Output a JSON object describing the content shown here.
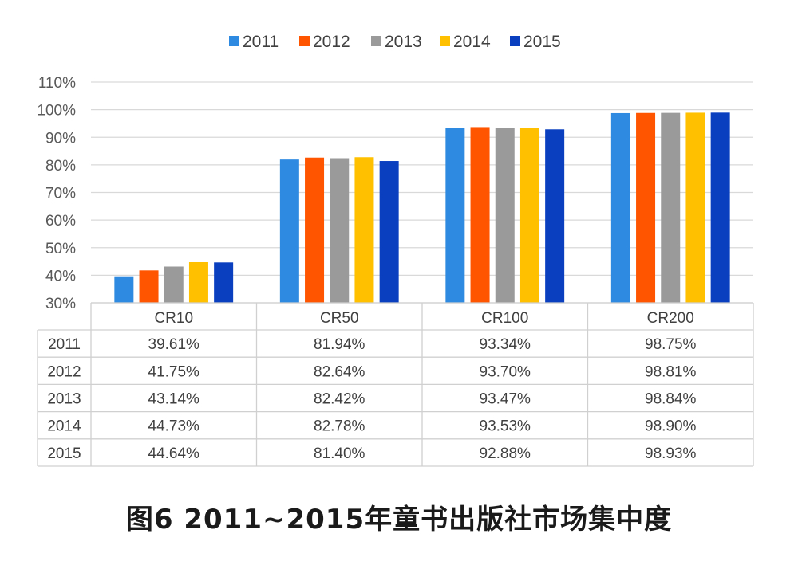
{
  "chart_data": {
    "type": "bar",
    "categories": [
      "CR10",
      "CR50",
      "CR100",
      "CR200"
    ],
    "series": [
      {
        "name": "2011",
        "color": "#2e8ae0",
        "values": [
          39.61,
          81.94,
          93.34,
          98.75
        ],
        "labels": [
          "39.61%",
          "81.94%",
          "93.34%",
          "98.75%"
        ]
      },
      {
        "name": "2012",
        "color": "#ff5500",
        "values": [
          41.75,
          82.64,
          93.7,
          98.81
        ],
        "labels": [
          "41.75%",
          "82.64%",
          "93.70%",
          "98.81%"
        ]
      },
      {
        "name": "2013",
        "color": "#9a9a9a",
        "values": [
          43.14,
          82.42,
          93.47,
          98.84
        ],
        "labels": [
          "43.14%",
          "82.42%",
          "93.47%",
          "98.84%"
        ]
      },
      {
        "name": "2014",
        "color": "#ffc000",
        "values": [
          44.73,
          82.78,
          93.53,
          98.9
        ],
        "labels": [
          "44.73%",
          "82.78%",
          "93.53%",
          "98.90%"
        ]
      },
      {
        "name": "2015",
        "color": "#0a3fc0",
        "values": [
          44.64,
          81.4,
          92.88,
          98.93
        ],
        "labels": [
          "44.64%",
          "81.40%",
          "92.88%",
          "98.93%"
        ]
      }
    ],
    "ylim": [
      30,
      110
    ],
    "yticks": [
      "30%",
      "40%",
      "50%",
      "60%",
      "70%",
      "80%",
      "90%",
      "100%",
      "110%"
    ],
    "grid": true,
    "legend": "top-center",
    "data_table": true
  },
  "caption": "图6  2011~2015年童书出版社市场集中度"
}
